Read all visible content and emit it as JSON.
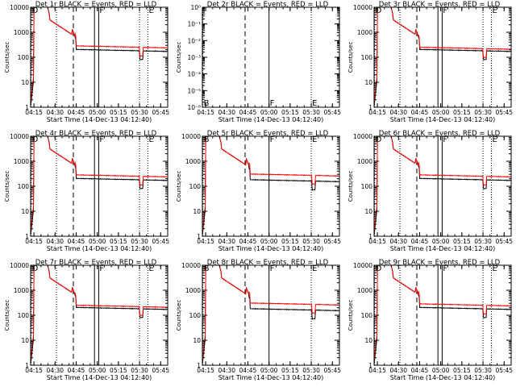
{
  "chart_data": [
    {
      "type": "line",
      "title": "Det 1r BLACK = Events, RED = LLD",
      "xlabel": "Start Time (14-Dec-13 04:12:40)",
      "ylabel": "Counts/sec",
      "yscale": "log",
      "ylim": [
        1,
        10000
      ],
      "ytick_labels": [
        "1",
        "10",
        "100",
        "1000",
        "10000"
      ],
      "xtick_labels": [
        "04:15",
        "04:30",
        "04:45",
        "05:00",
        "05:15",
        "05:30",
        "05:45"
      ],
      "has_data": true,
      "markers": [
        {
          "label": "D",
          "kind": "dotted",
          "time": "04:13"
        },
        {
          "label": "",
          "kind": "dotted",
          "time": "04:31"
        },
        {
          "label": "",
          "kind": "dashed",
          "time": "04:43"
        },
        {
          "label": "",
          "kind": "solid",
          "time": "04:58"
        },
        {
          "label": "F",
          "kind": "solid",
          "time": "05:01"
        },
        {
          "label": "",
          "kind": "dotted",
          "time": "05:30"
        },
        {
          "label": "E",
          "kind": "dotted",
          "time": "05:36"
        }
      ],
      "series": [
        {
          "name": "Events",
          "color": "#000000",
          "style": "events"
        },
        {
          "name": "LLD",
          "color": "#ff0000",
          "style": "lld"
        }
      ]
    },
    {
      "type": "line",
      "title": "Det 2r BLACK = Events, RED = LLD",
      "xlabel": "Start Time (14-Dec-13 04:12:40)",
      "ylabel": "Counts/sec",
      "yscale": "log",
      "ylim": [
        1e-06,
        1
      ],
      "ytick_labels": [
        "10⁻⁶",
        "10⁻⁵",
        "10⁻⁴",
        "10⁻³",
        "10⁻²",
        "10⁻¹",
        "10⁰"
      ],
      "xtick_labels": [
        "04:15",
        "04:30",
        "04:45",
        "05:00",
        "05:15",
        "05:30",
        "05:45"
      ],
      "has_data": false,
      "markers": [
        {
          "label": "B",
          "kind": "dotted",
          "time": "04:13"
        },
        {
          "label": "",
          "kind": "dashed",
          "time": "04:43"
        },
        {
          "label": "F",
          "kind": "solid",
          "time": "05:00"
        },
        {
          "label": "E",
          "kind": "dotted",
          "time": "05:30"
        }
      ],
      "series": [
        {
          "name": "Events",
          "color": "#000000",
          "style": "none"
        },
        {
          "name": "LLD",
          "color": "#ff0000",
          "style": "none"
        }
      ]
    },
    {
      "type": "line",
      "title": "Det 3r BLACK = Events, RED = LLD",
      "xlabel": "Start Time (14-Dec-13 04:12:40)",
      "ylabel": "Counts/sec",
      "yscale": "log",
      "ylim": [
        1,
        10000
      ],
      "ytick_labels": [
        "1",
        "10",
        "100",
        "1000",
        "10000"
      ],
      "xtick_labels": [
        "04:15",
        "04:30",
        "04:45",
        "05:00",
        "05:15",
        "05:30",
        "05:45"
      ],
      "has_data": true,
      "markers": [
        {
          "label": "D",
          "kind": "dotted",
          "time": "04:13"
        },
        {
          "label": "",
          "kind": "dotted",
          "time": "04:31"
        },
        {
          "label": "",
          "kind": "dashed",
          "time": "04:43"
        },
        {
          "label": "",
          "kind": "solid",
          "time": "04:58"
        },
        {
          "label": "F",
          "kind": "solid",
          "time": "05:01"
        },
        {
          "label": "",
          "kind": "dotted",
          "time": "05:30"
        },
        {
          "label": "E",
          "kind": "dotted",
          "time": "05:36"
        }
      ],
      "series": [
        {
          "name": "Events",
          "color": "#000000",
          "style": "events"
        },
        {
          "name": "LLD",
          "color": "#ff0000",
          "style": "lld_close"
        }
      ]
    },
    {
      "type": "line",
      "title": "Det 4r BLACK = Events, RED = LLD",
      "xlabel": "Start Time (14-Dec-13 04:12:40)",
      "ylabel": "Counts/sec",
      "yscale": "log",
      "ylim": [
        1,
        10000
      ],
      "ytick_labels": [
        "1",
        "10",
        "100",
        "1000",
        "10000"
      ],
      "xtick_labels": [
        "04:15",
        "04:30",
        "04:45",
        "05:00",
        "05:15",
        "05:30",
        "05:45"
      ],
      "has_data": true,
      "markers": [
        {
          "label": "D",
          "kind": "dotted",
          "time": "04:13"
        },
        {
          "label": "",
          "kind": "dotted",
          "time": "04:31"
        },
        {
          "label": "",
          "kind": "dashed",
          "time": "04:43"
        },
        {
          "label": "",
          "kind": "solid",
          "time": "04:58"
        },
        {
          "label": "F",
          "kind": "solid",
          "time": "05:01"
        },
        {
          "label": "",
          "kind": "dotted",
          "time": "05:30"
        },
        {
          "label": "E",
          "kind": "dotted",
          "time": "05:36"
        }
      ],
      "series": [
        {
          "name": "Events",
          "color": "#000000",
          "style": "events"
        },
        {
          "name": "LLD",
          "color": "#ff0000",
          "style": "lld"
        }
      ]
    },
    {
      "type": "line",
      "title": "Det 5r BLACK = Events, RED = LLD",
      "xlabel": "Start Time (14-Dec-13 04:12:40)",
      "ylabel": "Counts/sec",
      "yscale": "log",
      "ylim": [
        1,
        10000
      ],
      "ytick_labels": [
        "1",
        "10",
        "100",
        "1000",
        "10000"
      ],
      "xtick_labels": [
        "04:15",
        "04:30",
        "04:45",
        "05:00",
        "05:15",
        "05:30",
        "05:45"
      ],
      "has_data": true,
      "markers": [
        {
          "label": "B",
          "kind": "dotted",
          "time": "04:13"
        },
        {
          "label": "",
          "kind": "dashed",
          "time": "04:43"
        },
        {
          "label": "F",
          "kind": "solid",
          "time": "05:00"
        },
        {
          "label": "E",
          "kind": "dotted",
          "time": "05:30"
        }
      ],
      "series": [
        {
          "name": "Events",
          "color": "#000000",
          "style": "events_late"
        },
        {
          "name": "LLD",
          "color": "#ff0000",
          "style": "lld_late"
        }
      ]
    },
    {
      "type": "line",
      "title": "Det 6r BLACK = Events, RED = LLD",
      "xlabel": "Start Time (14-Dec-13 04:12:40)",
      "ylabel": "Counts/sec",
      "yscale": "log",
      "ylim": [
        1,
        10000
      ],
      "ytick_labels": [
        "1",
        "10",
        "100",
        "1000",
        "10000"
      ],
      "xtick_labels": [
        "04:15",
        "04:30",
        "04:45",
        "05:00",
        "05:15",
        "05:30",
        "05:45"
      ],
      "has_data": true,
      "markers": [
        {
          "label": "D",
          "kind": "dotted",
          "time": "04:13"
        },
        {
          "label": "",
          "kind": "dotted",
          "time": "04:31"
        },
        {
          "label": "",
          "kind": "dashed",
          "time": "04:43"
        },
        {
          "label": "",
          "kind": "solid",
          "time": "04:58"
        },
        {
          "label": "F",
          "kind": "solid",
          "time": "05:01"
        },
        {
          "label": "",
          "kind": "dotted",
          "time": "05:30"
        },
        {
          "label": "E",
          "kind": "dotted",
          "time": "05:36"
        }
      ],
      "series": [
        {
          "name": "Events",
          "color": "#000000",
          "style": "events"
        },
        {
          "name": "LLD",
          "color": "#ff0000",
          "style": "lld"
        }
      ]
    },
    {
      "type": "line",
      "title": "Det 7r BLACK = Events, RED = LLD",
      "xlabel": "Start Time (14-Dec-13 04:12:40)",
      "ylabel": "Counts/sec",
      "yscale": "log",
      "ylim": [
        1,
        10000
      ],
      "ytick_labels": [
        "1",
        "10",
        "100",
        "1000",
        "10000"
      ],
      "xtick_labels": [
        "04:15",
        "04:30",
        "04:45",
        "05:00",
        "05:15",
        "05:30",
        "05:45"
      ],
      "has_data": true,
      "markers": [
        {
          "label": "D",
          "kind": "dotted",
          "time": "04:13"
        },
        {
          "label": "",
          "kind": "dotted",
          "time": "04:31"
        },
        {
          "label": "",
          "kind": "dashed",
          "time": "04:43"
        },
        {
          "label": "",
          "kind": "solid",
          "time": "04:58"
        },
        {
          "label": "F",
          "kind": "solid",
          "time": "05:01"
        },
        {
          "label": "",
          "kind": "dotted",
          "time": "05:30"
        },
        {
          "label": "E",
          "kind": "dotted",
          "time": "05:36"
        }
      ],
      "series": [
        {
          "name": "Events",
          "color": "#000000",
          "style": "events"
        },
        {
          "name": "LLD",
          "color": "#ff0000",
          "style": "lld_close"
        }
      ]
    },
    {
      "type": "line",
      "title": "Det 8r BLACK = Events, RED = LLD",
      "xlabel": "Start Time (14-Dec-13 04:12:40)",
      "ylabel": "Counts/sec",
      "yscale": "log",
      "ylim": [
        1,
        10000
      ],
      "ytick_labels": [
        "1",
        "10",
        "100",
        "1000",
        "10000"
      ],
      "xtick_labels": [
        "04:15",
        "04:30",
        "04:45",
        "05:00",
        "05:15",
        "05:30",
        "05:45"
      ],
      "has_data": true,
      "markers": [
        {
          "label": "B",
          "kind": "dotted",
          "time": "04:13"
        },
        {
          "label": "",
          "kind": "dashed",
          "time": "04:43"
        },
        {
          "label": "F",
          "kind": "solid",
          "time": "05:00"
        },
        {
          "label": "E",
          "kind": "dotted",
          "time": "05:30"
        }
      ],
      "series": [
        {
          "name": "Events",
          "color": "#000000",
          "style": "events_late"
        },
        {
          "name": "LLD",
          "color": "#ff0000",
          "style": "lld_late"
        }
      ]
    },
    {
      "type": "line",
      "title": "Det 9r BLACK = Events, RED = LLD",
      "xlabel": "Start Time (14-Dec-13 04:12:40)",
      "ylabel": "Counts/sec",
      "yscale": "log",
      "ylim": [
        1,
        10000
      ],
      "ytick_labels": [
        "1",
        "10",
        "100",
        "1000",
        "10000"
      ],
      "xtick_labels": [
        "04:15",
        "04:30",
        "04:45",
        "05:00",
        "05:15",
        "05:30",
        "05:45"
      ],
      "has_data": true,
      "markers": [
        {
          "label": "D",
          "kind": "dotted",
          "time": "04:13"
        },
        {
          "label": "",
          "kind": "dotted",
          "time": "04:31"
        },
        {
          "label": "",
          "kind": "dashed",
          "time": "04:43"
        },
        {
          "label": "",
          "kind": "solid",
          "time": "04:58"
        },
        {
          "label": "F",
          "kind": "solid",
          "time": "05:01"
        },
        {
          "label": "",
          "kind": "dotted",
          "time": "05:30"
        },
        {
          "label": "E",
          "kind": "dotted",
          "time": "05:36"
        }
      ],
      "series": [
        {
          "name": "Events",
          "color": "#000000",
          "style": "events"
        },
        {
          "name": "LLD",
          "color": "#ff0000",
          "style": "lld"
        }
      ]
    }
  ]
}
